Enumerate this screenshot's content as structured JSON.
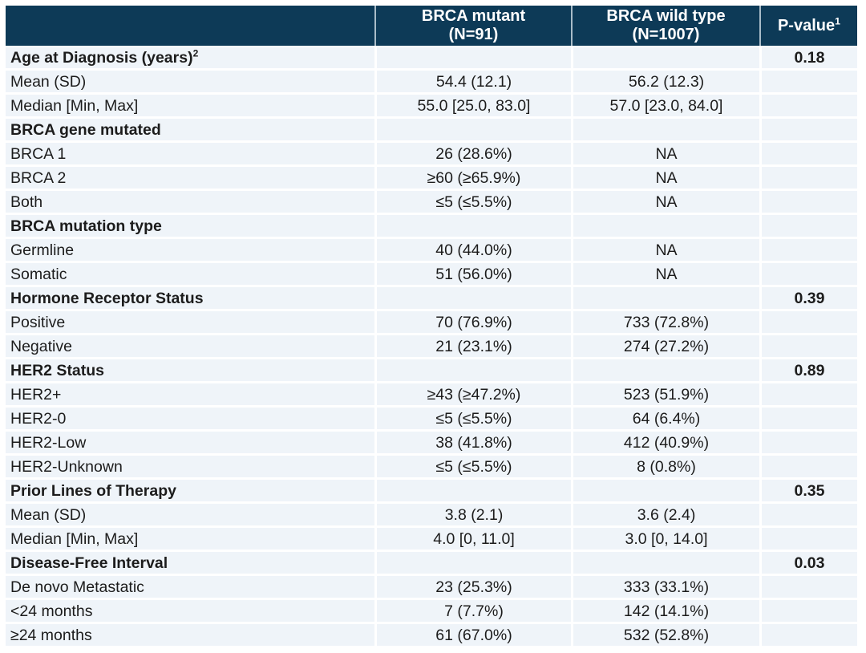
{
  "colors": {
    "header_bg": "#0d3a57",
    "header_text": "#ffffff",
    "header_divider": "#a9bcc8",
    "row_bg": "#eff4f9",
    "gridline": "#ffffff",
    "body_text": "#1c1c1c"
  },
  "table": {
    "header": {
      "col_label": "",
      "col_mutant": {
        "line1": "BRCA mutant",
        "line2": "(N=91)"
      },
      "col_wild": {
        "line1": "BRCA wild type",
        "line2": "(N=1007)"
      },
      "col_pvalue": {
        "text": "P-value",
        "sup": "1"
      }
    },
    "rows": [
      {
        "label": "Age at Diagnosis (years)",
        "sup": "2",
        "bold": true,
        "mutant": "",
        "wild": "",
        "p": "0.18"
      },
      {
        "label": "Mean (SD)",
        "bold": false,
        "mutant": "54.4 (12.1)",
        "wild": "56.2 (12.3)",
        "p": ""
      },
      {
        "label": "Median [Min, Max]",
        "bold": false,
        "mutant": "55.0 [25.0, 83.0]",
        "wild": "57.0 [23.0, 84.0]",
        "p": ""
      },
      {
        "label": "BRCA gene mutated",
        "bold": true,
        "mutant": "",
        "wild": "",
        "p": ""
      },
      {
        "label": "BRCA 1",
        "bold": false,
        "mutant": "26 (28.6%)",
        "wild": "NA",
        "p": ""
      },
      {
        "label": "BRCA 2",
        "bold": false,
        "mutant": "≥60 (≥65.9%)",
        "wild": "NA",
        "p": ""
      },
      {
        "label": "Both",
        "bold": false,
        "mutant": "≤5 (≤5.5%)",
        "wild": "NA",
        "p": ""
      },
      {
        "label": "BRCA mutation type",
        "bold": true,
        "mutant": "",
        "wild": "",
        "p": ""
      },
      {
        "label": "Germline",
        "bold": false,
        "mutant": "40 (44.0%)",
        "wild": "NA",
        "p": ""
      },
      {
        "label": "Somatic",
        "bold": false,
        "mutant": "51 (56.0%)",
        "wild": "NA",
        "p": ""
      },
      {
        "label": "Hormone Receptor Status",
        "bold": true,
        "mutant": "",
        "wild": "",
        "p": "0.39"
      },
      {
        "label": "Positive",
        "bold": false,
        "mutant": "70 (76.9%)",
        "wild": "733 (72.8%)",
        "p": ""
      },
      {
        "label": "Negative",
        "bold": false,
        "mutant": "21 (23.1%)",
        "wild": "274 (27.2%)",
        "p": ""
      },
      {
        "label": "HER2 Status",
        "bold": true,
        "mutant": "",
        "wild": "",
        "p": "0.89"
      },
      {
        "label": "HER2+",
        "bold": false,
        "mutant": "≥43 (≥47.2%)",
        "wild": "523 (51.9%)",
        "p": ""
      },
      {
        "label": "HER2-0",
        "bold": false,
        "mutant": "≤5 (≤5.5%)",
        "wild": "64 (6.4%)",
        "p": ""
      },
      {
        "label": "HER2-Low",
        "bold": false,
        "mutant": "38 (41.8%)",
        "wild": "412 (40.9%)",
        "p": ""
      },
      {
        "label": "HER2-Unknown",
        "bold": false,
        "mutant": "≤5 (≤5.5%)",
        "wild": "8 (0.8%)",
        "p": ""
      },
      {
        "label": "Prior Lines of Therapy",
        "bold": true,
        "mutant": "",
        "wild": "",
        "p": "0.35"
      },
      {
        "label": "Mean (SD)",
        "bold": false,
        "mutant": "3.8 (2.1)",
        "wild": "3.6 (2.4)",
        "p": ""
      },
      {
        "label": "Median [Min, Max]",
        "bold": false,
        "mutant": "4.0 [0, 11.0]",
        "wild": "3.0 [0, 14.0]",
        "p": ""
      },
      {
        "label": "Disease-Free Interval",
        "bold": true,
        "mutant": "",
        "wild": "",
        "p": "0.03"
      },
      {
        "label": "De novo Metastatic",
        "bold": false,
        "mutant": "23 (25.3%)",
        "wild": "333 (33.1%)",
        "p": ""
      },
      {
        "label": "<24 months",
        "bold": false,
        "mutant": "7 (7.7%)",
        "wild": "142 (14.1%)",
        "p": ""
      },
      {
        "label": "≥24 months",
        "bold": false,
        "mutant": "61 (67.0%)",
        "wild": "532 (52.8%)",
        "p": ""
      }
    ]
  }
}
